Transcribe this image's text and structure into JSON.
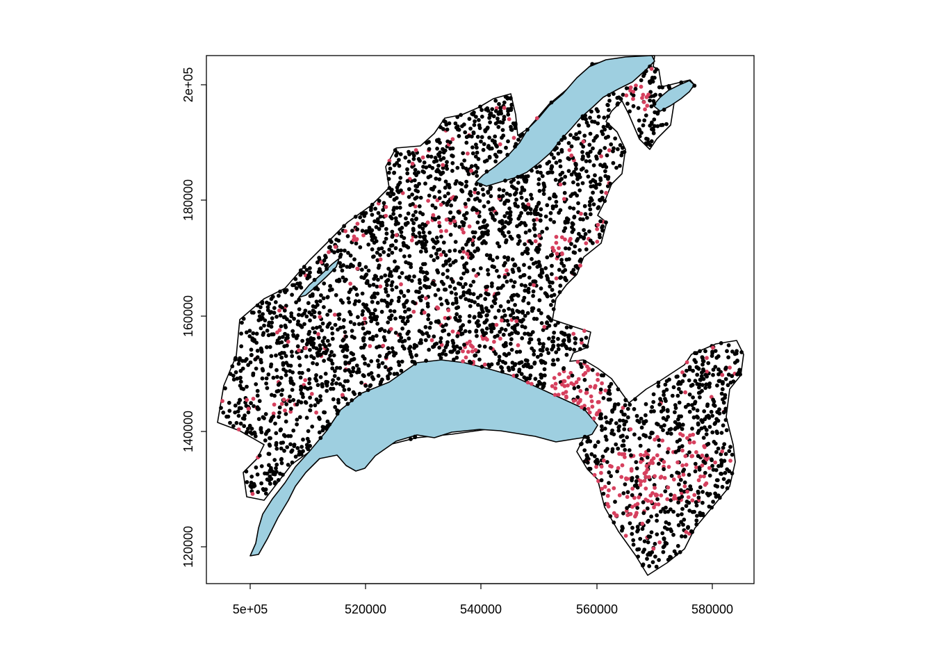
{
  "map": {
    "x_axis": {
      "ticks": [
        {
          "value": 500000,
          "label": "5e+05"
        },
        {
          "value": 520000,
          "label": "520000"
        },
        {
          "value": 540000,
          "label": "540000"
        },
        {
          "value": 560000,
          "label": "560000"
        },
        {
          "value": 580000,
          "label": "580000"
        }
      ]
    },
    "y_axis": {
      "ticks": [
        {
          "value": 120000,
          "label": "120000"
        },
        {
          "value": 140000,
          "label": "140000"
        },
        {
          "value": 160000,
          "label": "160000"
        },
        {
          "value": 180000,
          "label": "180000"
        },
        {
          "value": 200000,
          "label": "2e+05"
        }
      ]
    },
    "colors": {
      "lake_fill": "#9ecfe0",
      "outline": "#000000",
      "point_regular": "#000000",
      "point_highlight": "#d6405e"
    },
    "layers": [
      "region-outline",
      "lakes",
      "point-occurrences"
    ]
  }
}
